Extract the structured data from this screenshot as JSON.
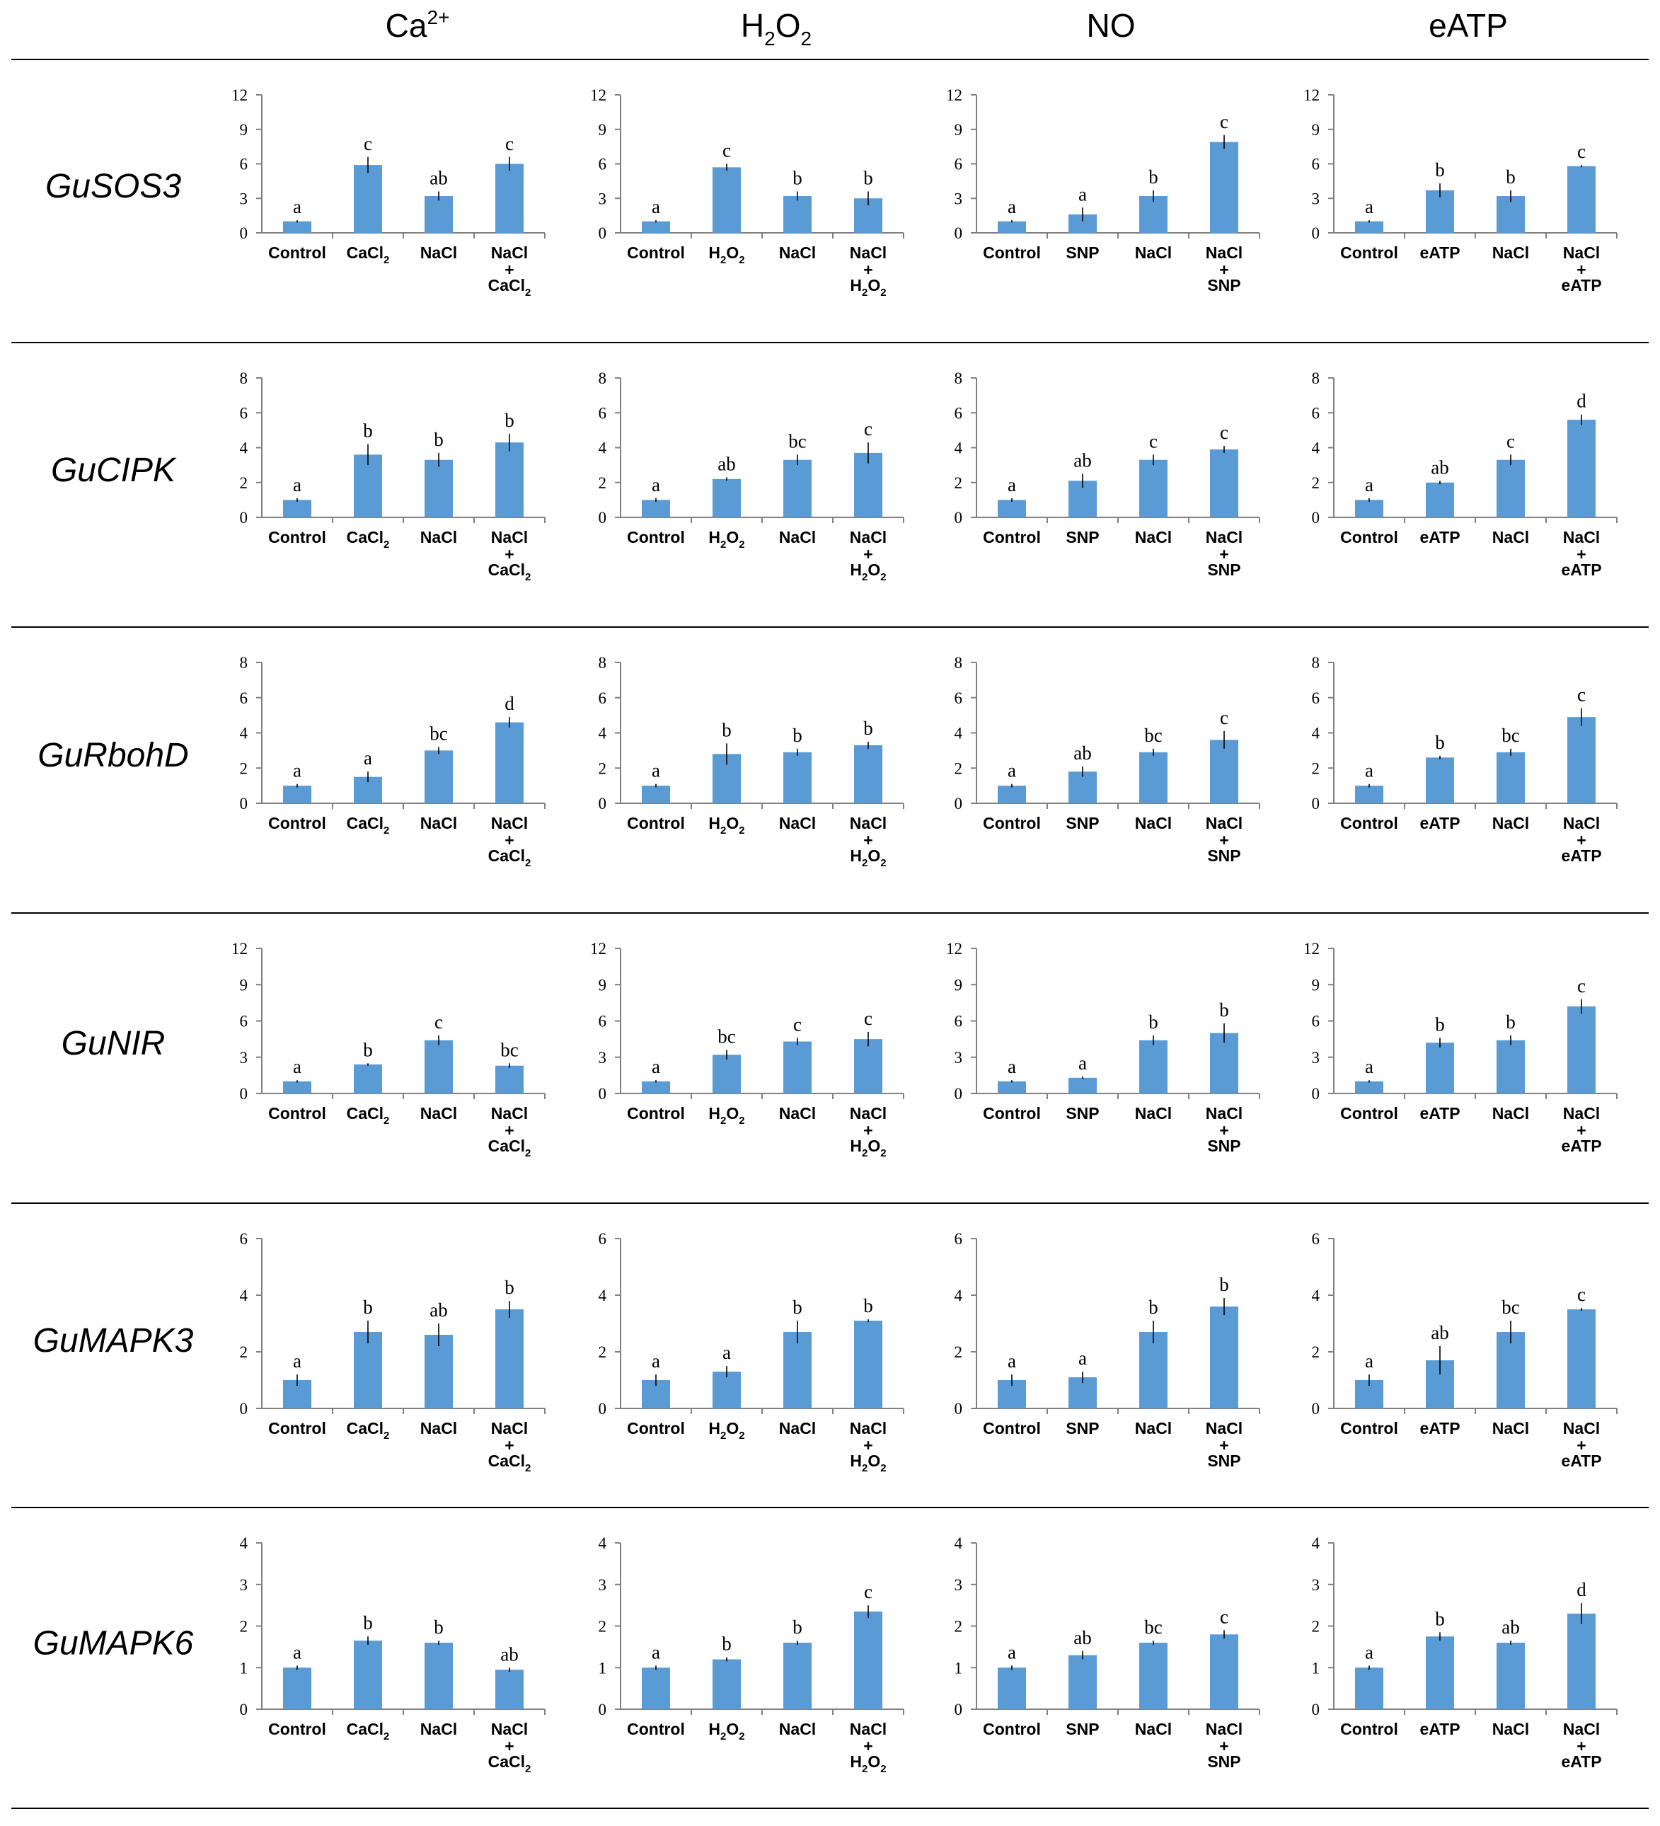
{
  "colors": {
    "bar": "#5B9BD5",
    "axis": "#808080",
    "separator": "#000000"
  },
  "treatments": [
    {
      "name": "Ca",
      "sup": "2+",
      "sub": "",
      "sub2": "",
      "tail": ""
    },
    {
      "name": "H",
      "sup": "",
      "sub": "2",
      "sub2": "2",
      "tail": "O"
    },
    {
      "name": "NO",
      "sup": "",
      "sub": "",
      "sub2": "",
      "tail": ""
    },
    {
      "name": "eATP",
      "sup": "",
      "sub": "",
      "sub2": "",
      "tail": ""
    }
  ],
  "categories": [
    [
      {
        "l1": "Control"
      },
      {
        "l1": "CaCl",
        "s1": "2"
      },
      {
        "l1": "NaCl"
      },
      {
        "l1": "NaCl",
        "l2": "+",
        "l3": "CaCl",
        "s3": "2"
      }
    ],
    [
      {
        "l1": "Control"
      },
      {
        "l1": "H",
        "s1": "2",
        "m1": "O",
        "t1": "2"
      },
      {
        "l1": "NaCl"
      },
      {
        "l1": "NaCl",
        "l2": "+",
        "l3": "H",
        "s3": "2",
        "m3": "O",
        "t3": "2"
      }
    ],
    [
      {
        "l1": "Control"
      },
      {
        "l1": "SNP"
      },
      {
        "l1": "NaCl"
      },
      {
        "l1": "NaCl",
        "l2": "+",
        "l3": "SNP"
      }
    ],
    [
      {
        "l1": "Control"
      },
      {
        "l1": "eATP"
      },
      {
        "l1": "NaCl"
      },
      {
        "l1": "NaCl",
        "l2": "+",
        "l3": "eATP"
      }
    ]
  ],
  "chart_data": [
    {
      "gene": "GuSOS3",
      "type": "bar",
      "ylim": [
        0,
        12
      ],
      "yticks": [
        0,
        3,
        6,
        9,
        12
      ],
      "panels": [
        {
          "values": [
            1.0,
            5.9,
            3.2,
            6.0
          ],
          "errors": [
            0.1,
            0.7,
            0.4,
            0.6
          ],
          "letters": [
            "a",
            "c",
            "ab",
            "c"
          ]
        },
        {
          "values": [
            1.0,
            5.7,
            3.2,
            3.0
          ],
          "errors": [
            0.1,
            0.3,
            0.4,
            0.6
          ],
          "letters": [
            "a",
            "c",
            "b",
            "b"
          ]
        },
        {
          "values": [
            1.0,
            1.6,
            3.2,
            7.9
          ],
          "errors": [
            0.1,
            0.6,
            0.5,
            0.6
          ],
          "letters": [
            "a",
            "a",
            "b",
            "c"
          ]
        },
        {
          "values": [
            1.0,
            3.7,
            3.2,
            5.8
          ],
          "errors": [
            0.1,
            0.6,
            0.5,
            0.1
          ],
          "letters": [
            "a",
            "b",
            "b",
            "c"
          ]
        }
      ]
    },
    {
      "gene": "GuCIPK",
      "type": "bar",
      "ylim": [
        0,
        8
      ],
      "yticks": [
        0,
        2,
        4,
        6,
        8
      ],
      "panels": [
        {
          "values": [
            1.0,
            3.6,
            3.3,
            4.3
          ],
          "errors": [
            0.1,
            0.6,
            0.4,
            0.5
          ],
          "letters": [
            "a",
            "b",
            "b",
            "b"
          ]
        },
        {
          "values": [
            1.0,
            2.2,
            3.3,
            3.7
          ],
          "errors": [
            0.1,
            0.1,
            0.3,
            0.6
          ],
          "letters": [
            "a",
            "ab",
            "bc",
            "c"
          ]
        },
        {
          "values": [
            1.0,
            2.1,
            3.3,
            3.9
          ],
          "errors": [
            0.1,
            0.4,
            0.3,
            0.2
          ],
          "letters": [
            "a",
            "ab",
            "c",
            "c"
          ]
        },
        {
          "values": [
            1.0,
            2.0,
            3.3,
            5.6
          ],
          "errors": [
            0.1,
            0.1,
            0.3,
            0.3
          ],
          "letters": [
            "a",
            "ab",
            "c",
            "d"
          ]
        }
      ]
    },
    {
      "gene": "GuRbohD",
      "type": "bar",
      "ylim": [
        0,
        8
      ],
      "yticks": [
        0,
        2,
        4,
        6,
        8
      ],
      "panels": [
        {
          "values": [
            1.0,
            1.5,
            3.0,
            4.6
          ],
          "errors": [
            0.1,
            0.3,
            0.2,
            0.3
          ],
          "letters": [
            "a",
            "a",
            "bc",
            "d"
          ]
        },
        {
          "values": [
            1.0,
            2.8,
            2.9,
            3.3
          ],
          "errors": [
            0.1,
            0.6,
            0.2,
            0.2
          ],
          "letters": [
            "a",
            "b",
            "b",
            "b"
          ]
        },
        {
          "values": [
            1.0,
            1.8,
            2.9,
            3.6
          ],
          "errors": [
            0.1,
            0.3,
            0.2,
            0.5
          ],
          "letters": [
            "a",
            "ab",
            "bc",
            "c"
          ]
        },
        {
          "values": [
            1.0,
            2.6,
            2.9,
            4.9
          ],
          "errors": [
            0.1,
            0.1,
            0.2,
            0.5
          ],
          "letters": [
            "a",
            "b",
            "bc",
            "c"
          ]
        }
      ]
    },
    {
      "gene": "GuNIR",
      "type": "bar",
      "ylim": [
        0,
        12
      ],
      "yticks": [
        0,
        3,
        6,
        9,
        12
      ],
      "panels": [
        {
          "values": [
            1.0,
            2.4,
            4.4,
            2.3
          ],
          "errors": [
            0.1,
            0.1,
            0.4,
            0.2
          ],
          "letters": [
            "a",
            "b",
            "c",
            "bc"
          ]
        },
        {
          "values": [
            1.0,
            3.2,
            4.3,
            4.5
          ],
          "errors": [
            0.1,
            0.4,
            0.3,
            0.6
          ],
          "letters": [
            "a",
            "bc",
            "c",
            "c"
          ]
        },
        {
          "values": [
            1.0,
            1.3,
            4.4,
            5.0
          ],
          "errors": [
            0.1,
            0.1,
            0.4,
            0.8
          ],
          "letters": [
            "a",
            "a",
            "b",
            "b"
          ]
        },
        {
          "values": [
            1.0,
            4.2,
            4.4,
            7.2
          ],
          "errors": [
            0.1,
            0.4,
            0.4,
            0.6
          ],
          "letters": [
            "a",
            "b",
            "b",
            "c"
          ]
        }
      ]
    },
    {
      "gene": "GuMAPK3",
      "type": "bar",
      "ylim": [
        0,
        6
      ],
      "yticks": [
        0,
        2,
        4,
        6
      ],
      "panels": [
        {
          "values": [
            1.0,
            2.7,
            2.6,
            3.5
          ],
          "errors": [
            0.2,
            0.4,
            0.4,
            0.3
          ],
          "letters": [
            "a",
            "b",
            "ab",
            "b"
          ]
        },
        {
          "values": [
            1.0,
            1.3,
            2.7,
            3.1
          ],
          "errors": [
            0.2,
            0.2,
            0.4,
            0.05
          ],
          "letters": [
            "a",
            "a",
            "b",
            "b"
          ]
        },
        {
          "values": [
            1.0,
            1.1,
            2.7,
            3.6
          ],
          "errors": [
            0.2,
            0.2,
            0.4,
            0.3
          ],
          "letters": [
            "a",
            "a",
            "b",
            "b"
          ]
        },
        {
          "values": [
            1.0,
            1.7,
            2.7,
            3.5
          ],
          "errors": [
            0.2,
            0.5,
            0.4,
            0.05
          ],
          "letters": [
            "a",
            "ab",
            "bc",
            "c"
          ]
        }
      ]
    },
    {
      "gene": "GuMAPK6",
      "type": "bar",
      "ylim": [
        0,
        4
      ],
      "yticks": [
        0,
        1,
        2,
        3,
        4
      ],
      "panels": [
        {
          "values": [
            1.0,
            1.65,
            1.6,
            0.95
          ],
          "errors": [
            0.05,
            0.1,
            0.05,
            0.05
          ],
          "letters": [
            "a",
            "b",
            "b",
            "ab"
          ]
        },
        {
          "values": [
            1.0,
            1.2,
            1.6,
            2.35
          ],
          "errors": [
            0.05,
            0.05,
            0.05,
            0.15
          ],
          "letters": [
            "a",
            "b",
            "b",
            "c"
          ]
        },
        {
          "values": [
            1.0,
            1.3,
            1.6,
            1.8
          ],
          "errors": [
            0.05,
            0.1,
            0.05,
            0.1
          ],
          "letters": [
            "a",
            "ab",
            "bc",
            "c"
          ]
        },
        {
          "values": [
            1.0,
            1.75,
            1.6,
            2.3
          ],
          "errors": [
            0.05,
            0.1,
            0.05,
            0.25
          ],
          "letters": [
            "a",
            "b",
            "ab",
            "d"
          ]
        }
      ]
    }
  ]
}
